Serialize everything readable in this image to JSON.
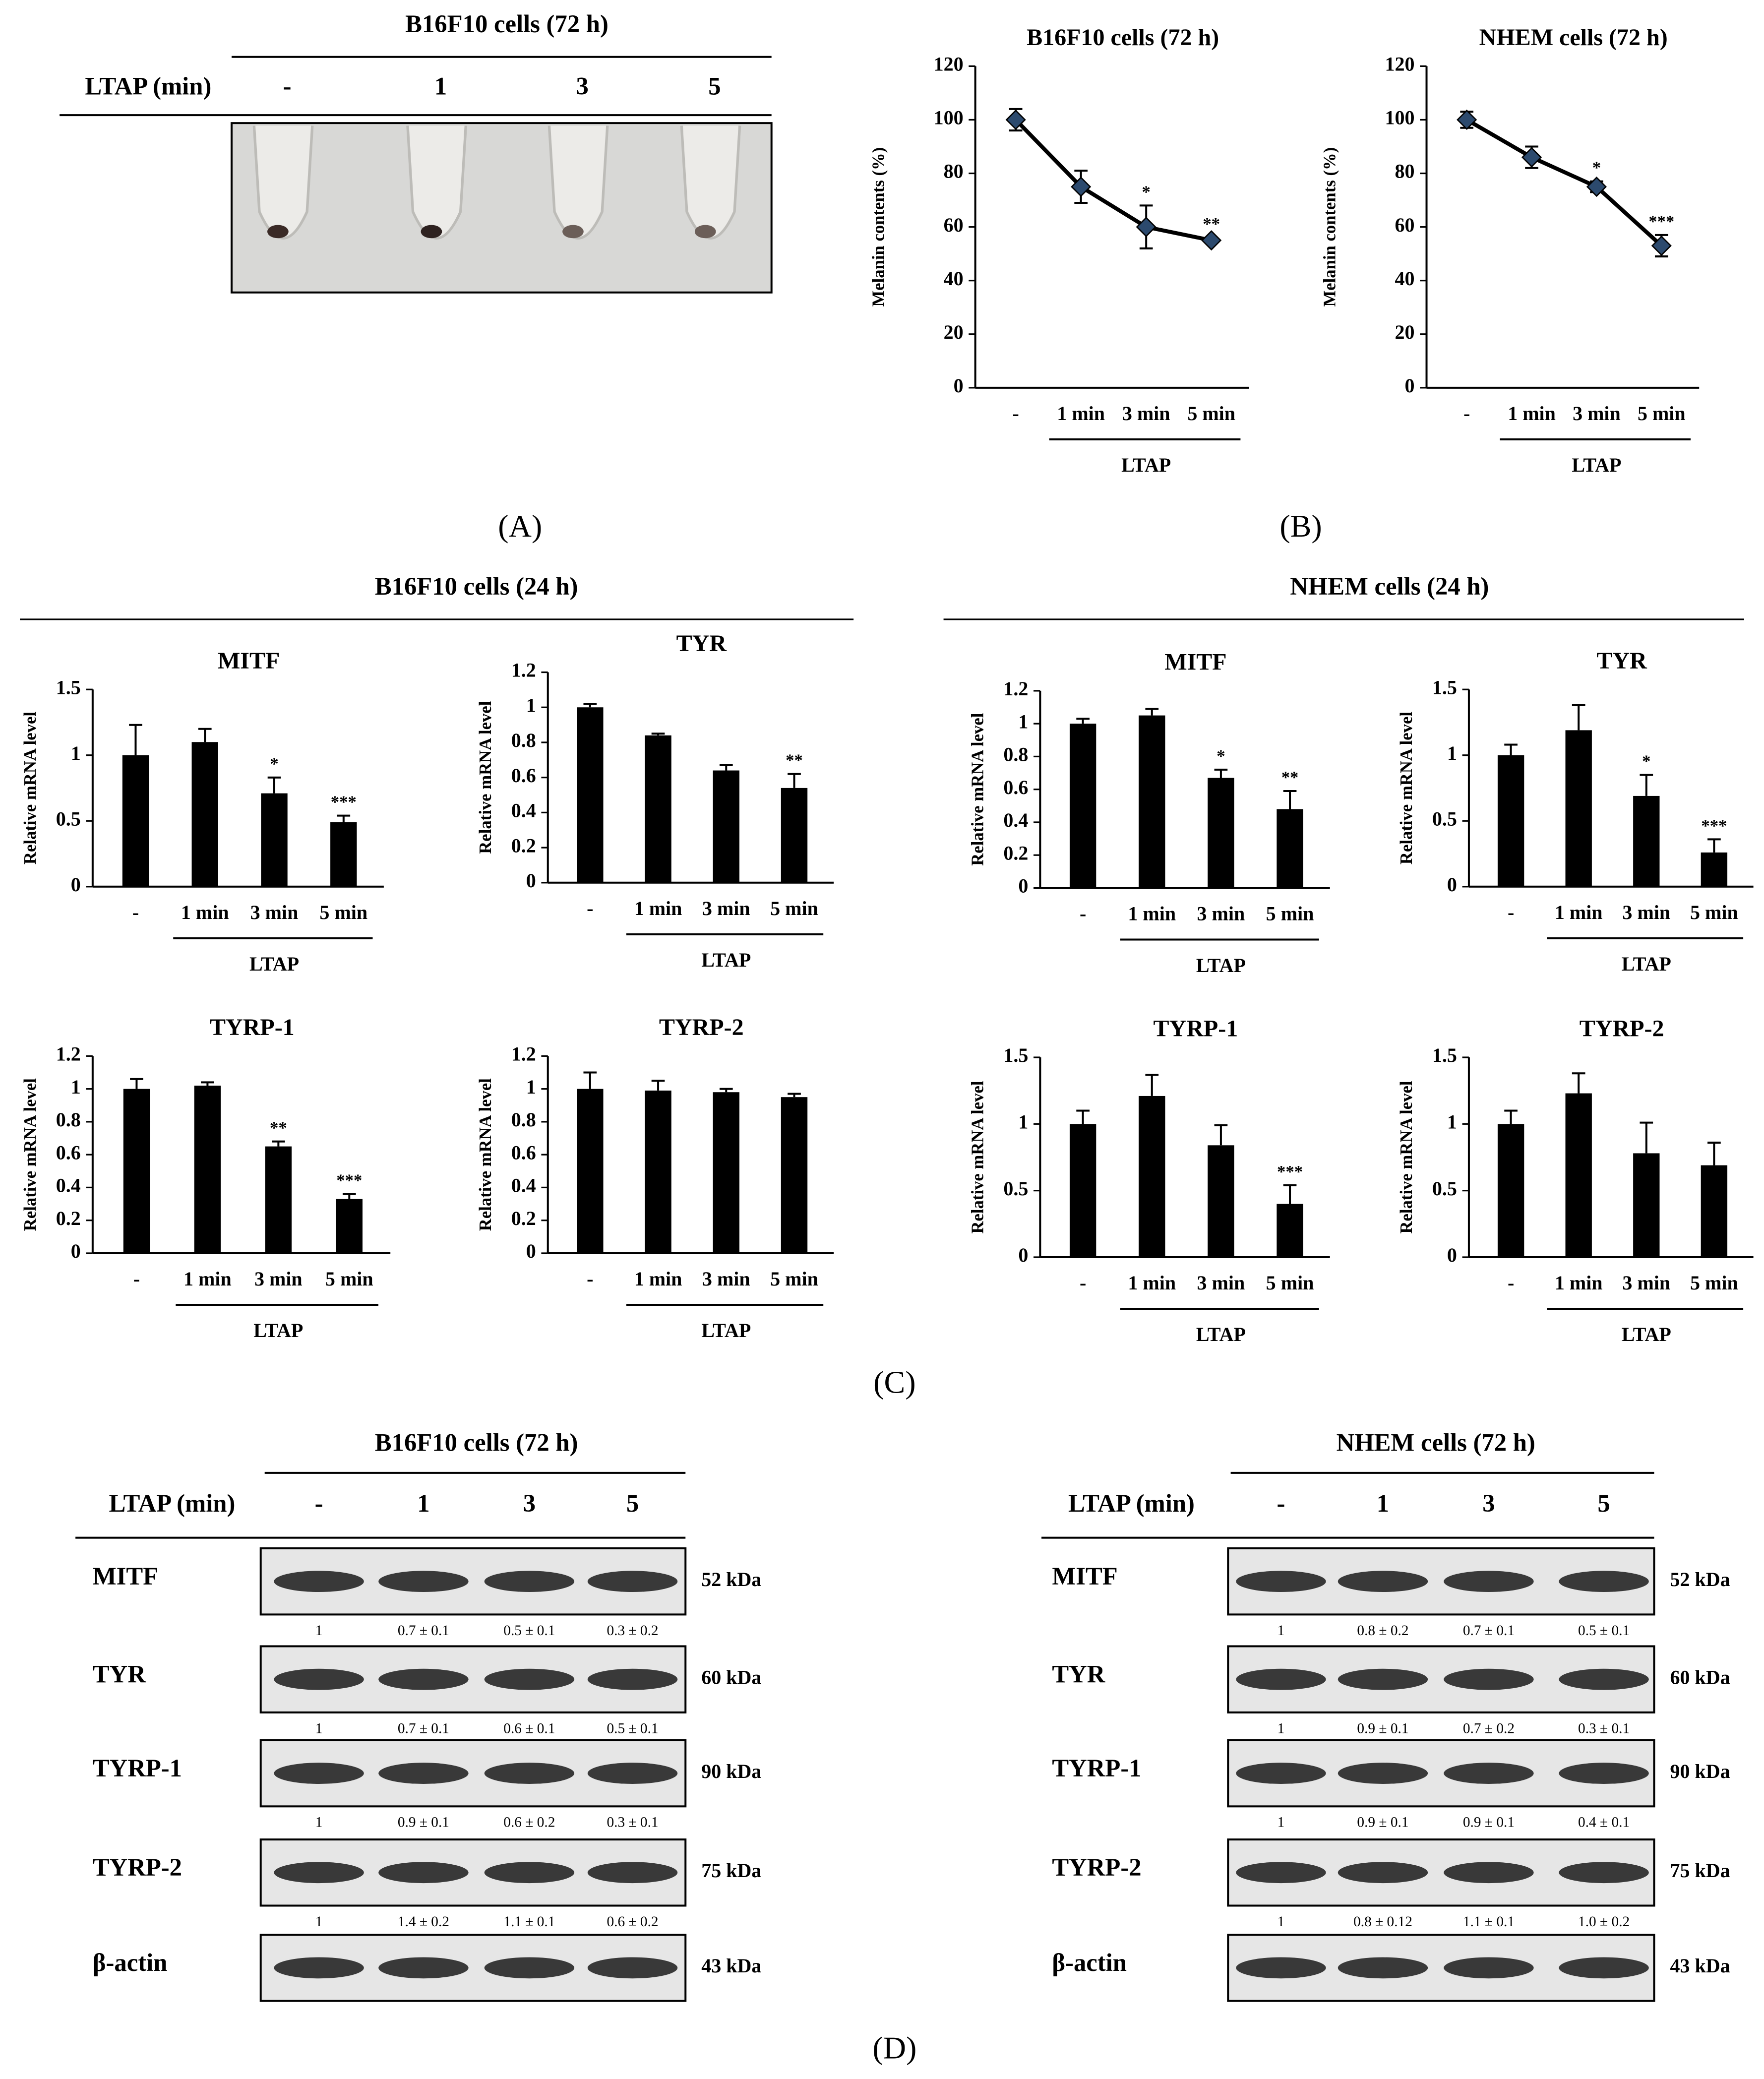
{
  "panel_labels": [
    "(A)",
    "(B)",
    "(C)",
    "(D)"
  ],
  "panel_a": {
    "title": "B16F10 cells (72 h)",
    "row_label": "LTAP (min)",
    "lanes": [
      "-",
      "1",
      "3",
      "5"
    ]
  },
  "panel_c_sections": [
    "B16F10 cells (24 h)",
    "NHEM cells (24 h)"
  ],
  "chart_data": [
    {
      "type": "line",
      "title": "B16F10 cells (72 h)",
      "y_label": "Melanin contents (%)",
      "group_label": "LTAP",
      "categories": [
        "-",
        "1 min",
        "3 min",
        "5 min"
      ],
      "values": [
        100,
        75,
        60,
        55
      ],
      "errors": [
        4,
        6,
        8,
        1
      ],
      "annotations": [
        null,
        null,
        "*",
        "**"
      ],
      "color": "#000000",
      "marker_color": "#2c4a6e",
      "ylim": [
        0,
        120
      ],
      "yticks": [
        0,
        20,
        40,
        60,
        80,
        100,
        120
      ]
    },
    {
      "type": "line",
      "title": "NHEM cells (72 h)",
      "y_label": "Melanin contents (%)",
      "group_label": "LTAP",
      "categories": [
        "-",
        "1 min",
        "3 min",
        "5 min"
      ],
      "values": [
        100,
        86,
        75,
        53
      ],
      "errors": [
        3,
        4,
        2,
        4
      ],
      "annotations": [
        null,
        null,
        "*",
        "***"
      ],
      "color": "#000000",
      "marker_color": "#2c4a6e",
      "ylim": [
        0,
        120
      ],
      "yticks": [
        0,
        20,
        40,
        60,
        80,
        100,
        120
      ]
    },
    {
      "type": "bar",
      "title": "MITF",
      "y_label": "Relative mRNA level",
      "group_label": "LTAP",
      "categories": [
        "-",
        "1 min",
        "3 min",
        "5 min"
      ],
      "values": [
        1,
        1.1,
        0.71,
        0.49
      ],
      "errors": [
        0.23,
        0.1,
        0.12,
        0.05
      ],
      "annotations": [
        null,
        null,
        "*",
        "***"
      ],
      "color": "#000000",
      "ylim": [
        0,
        1.5
      ],
      "yticks": [
        0,
        0.5,
        1,
        1.5
      ]
    },
    {
      "type": "bar",
      "title": "TYR",
      "y_label": "Relative mRNA level",
      "group_label": "LTAP",
      "categories": [
        "-",
        "1 min",
        "3 min",
        "5 min"
      ],
      "values": [
        1,
        0.84,
        0.64,
        0.54
      ],
      "errors": [
        0.02,
        0.01,
        0.03,
        0.08
      ],
      "annotations": [
        null,
        null,
        null,
        "**"
      ],
      "color": "#000000",
      "ylim": [
        0,
        1.2
      ],
      "yticks": [
        0,
        0.2,
        0.4,
        0.6,
        0.8,
        1,
        1.2
      ]
    },
    {
      "type": "bar",
      "title": "MITF",
      "y_label": "Relative mRNA level",
      "group_label": "LTAP",
      "categories": [
        "-",
        "1 min",
        "3 min",
        "5 min"
      ],
      "values": [
        1,
        1.05,
        0.67,
        0.48
      ],
      "errors": [
        0.03,
        0.04,
        0.05,
        0.11
      ],
      "annotations": [
        null,
        null,
        "*",
        "**"
      ],
      "color": "#000000",
      "ylim": [
        0,
        1.2
      ],
      "yticks": [
        0,
        0.2,
        0.4,
        0.6,
        0.8,
        1,
        1.2
      ]
    },
    {
      "type": "bar",
      "title": "TYR",
      "y_label": "Relative mRNA level",
      "group_label": "LTAP",
      "categories": [
        "-",
        "1 min",
        "3 min",
        "5 min"
      ],
      "values": [
        1,
        1.19,
        0.69,
        0.26
      ],
      "errors": [
        0.08,
        0.19,
        0.16,
        0.1
      ],
      "annotations": [
        null,
        null,
        "*",
        "***"
      ],
      "color": "#000000",
      "ylim": [
        0,
        1.5
      ],
      "yticks": [
        0,
        0.5,
        1,
        1.5
      ]
    },
    {
      "type": "bar",
      "title": "TYRP-1",
      "y_label": "Relative mRNA level",
      "group_label": "LTAP",
      "categories": [
        "-",
        "1 min",
        "3 min",
        "5 min"
      ],
      "values": [
        1,
        1.02,
        0.65,
        0.33
      ],
      "errors": [
        0.06,
        0.02,
        0.03,
        0.03
      ],
      "annotations": [
        null,
        null,
        "**",
        "***"
      ],
      "color": "#000000",
      "ylim": [
        0,
        1.2
      ],
      "yticks": [
        0,
        0.2,
        0.4,
        0.6,
        0.8,
        1,
        1.2
      ]
    },
    {
      "type": "bar",
      "title": "TYRP-2",
      "y_label": "Relative mRNA level",
      "group_label": "LTAP",
      "categories": [
        "-",
        "1 min",
        "3 min",
        "5 min"
      ],
      "values": [
        1,
        0.99,
        0.98,
        0.95
      ],
      "errors": [
        0.1,
        0.06,
        0.02,
        0.02
      ],
      "annotations": [
        null,
        null,
        null,
        null
      ],
      "color": "#000000",
      "ylim": [
        0,
        1.2
      ],
      "yticks": [
        0,
        0.2,
        0.4,
        0.6,
        0.8,
        1,
        1.2
      ]
    },
    {
      "type": "bar",
      "title": "TYRP-1",
      "y_label": "Relative mRNA level",
      "group_label": "LTAP",
      "categories": [
        "-",
        "1 min",
        "3 min",
        "5 min"
      ],
      "values": [
        1,
        1.21,
        0.84,
        0.4
      ],
      "errors": [
        0.1,
        0.16,
        0.15,
        0.14
      ],
      "annotations": [
        null,
        null,
        null,
        "***"
      ],
      "color": "#000000",
      "ylim": [
        0,
        1.5
      ],
      "yticks": [
        0,
        0.5,
        1,
        1.5
      ]
    },
    {
      "type": "bar",
      "title": "TYRP-2",
      "y_label": "Relative mRNA level",
      "group_label": "LTAP",
      "categories": [
        "-",
        "1 min",
        "3 min",
        "5 min"
      ],
      "values": [
        1,
        1.23,
        0.78,
        0.69
      ],
      "errors": [
        0.1,
        0.15,
        0.23,
        0.17
      ],
      "annotations": [
        null,
        null,
        null,
        null
      ],
      "color": "#000000",
      "ylim": [
        0,
        1.5
      ],
      "yticks": [
        0,
        0.5,
        1,
        1.5
      ]
    }
  ],
  "blots": [
    {
      "title": "B16F10 cells (72 h)",
      "row_label": "LTAP (min)",
      "lanes": [
        "-",
        "1",
        "3",
        "5"
      ],
      "rows": [
        {
          "protein": "MITF",
          "size": "52 kDa",
          "quant": [
            "1",
            "0.7 ± 0.1",
            "0.5 ± 0.1",
            "0.3 ± 0.2"
          ]
        },
        {
          "protein": "TYR",
          "size": "60 kDa",
          "quant": [
            "1",
            "0.7 ± 0.1",
            "0.6 ± 0.1",
            "0.5 ± 0.1"
          ]
        },
        {
          "protein": "TYRP-1",
          "size": "90 kDa",
          "quant": [
            "1",
            "0.9 ± 0.1",
            "0.6 ± 0.2",
            "0.3 ± 0.1"
          ]
        },
        {
          "protein": "TYRP-2",
          "size": "75 kDa",
          "quant": [
            "1",
            "1.4 ± 0.2",
            "1.1 ± 0.1",
            "0.6 ± 0.2"
          ]
        },
        {
          "protein": "β-actin",
          "size": "43 kDa"
        }
      ]
    },
    {
      "title": "NHEM cells (72 h)",
      "row_label": "LTAP (min)",
      "lanes": [
        "-",
        "1",
        "3",
        "5"
      ],
      "rows": [
        {
          "protein": "MITF",
          "size": "52 kDa",
          "quant": [
            "1",
            "0.8 ± 0.2",
            "0.7 ± 0.1",
            "0.5 ± 0.1"
          ]
        },
        {
          "protein": "TYR",
          "size": "60 kDa",
          "quant": [
            "1",
            "0.9 ± 0.1",
            "0.7 ± 0.2",
            "0.3 ± 0.1"
          ]
        },
        {
          "protein": "TYRP-1",
          "size": "90 kDa",
          "quant": [
            "1",
            "0.9 ± 0.1",
            "0.9 ± 0.1",
            "0.4 ± 0.1"
          ]
        },
        {
          "protein": "TYRP-2",
          "size": "75 kDa",
          "quant": [
            "1",
            "0.8 ± 0.12",
            "1.1 ± 0.1",
            "1.0 ± 0.2"
          ]
        },
        {
          "protein": "β-actin",
          "size": "43 kDa"
        }
      ]
    }
  ]
}
